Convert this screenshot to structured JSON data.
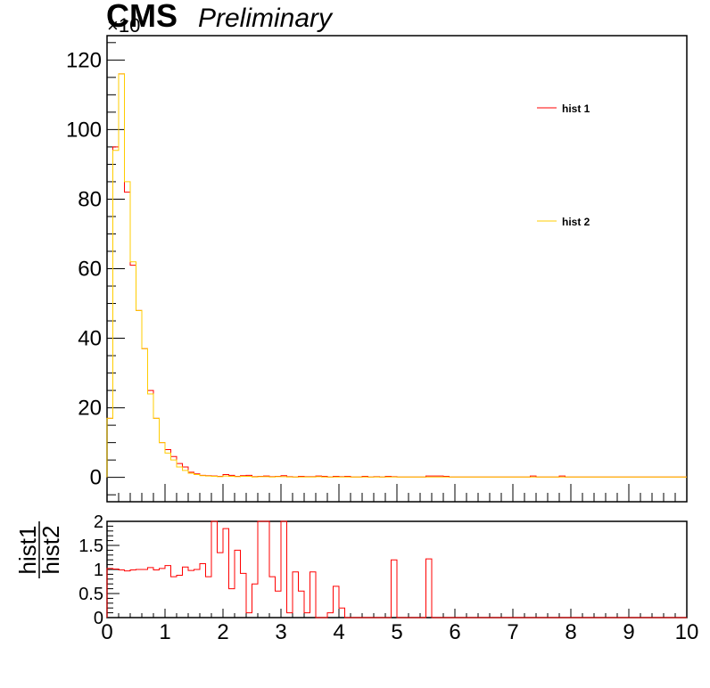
{
  "header": {
    "experiment": "CMS",
    "status": "Preliminary",
    "y_scale_label": "×10"
  },
  "legend": {
    "placement": "upper-right",
    "entries": [
      {
        "label": "hist 1",
        "color": "#ff0000"
      },
      {
        "label": "hist 2",
        "color": "#ffcc00"
      }
    ]
  },
  "chart_data": [
    {
      "type": "histogram",
      "xlim": [
        0,
        10
      ],
      "ylim": [
        -7,
        127
      ],
      "bin_width": 0.1,
      "y_tick_labels": [
        "0",
        "20",
        "40",
        "60",
        "80",
        "100",
        "120"
      ],
      "y_ticks": [
        0,
        20,
        40,
        60,
        80,
        100,
        120
      ],
      "series": [
        {
          "color": "#ff0000",
          "values": [
            17,
            95,
            116,
            82,
            61,
            48,
            37,
            25,
            17,
            10,
            8,
            6,
            4,
            3,
            1.5,
            1,
            0.6,
            0.5,
            0.4,
            0.3,
            0.8,
            0.6,
            0.3,
            0.5,
            0.6,
            0.2,
            0.3,
            0.4,
            0.2,
            0.3,
            0.5,
            0.2,
            0.1,
            0.3,
            0.2,
            0.2,
            0.4,
            0.3,
            0.1,
            0.3,
            0.2,
            0.3,
            0.1,
            0.1,
            0.3,
            0.1,
            0.2,
            0.1,
            0.3,
            0.2,
            0.1,
            0.1,
            0.1,
            0.1,
            0.1,
            0.4,
            0.4,
            0.4,
            0.3,
            0.1,
            0.1,
            0.1,
            0.1,
            0.1,
            0.1,
            0.1,
            0.1,
            0.1,
            0.1,
            0.1,
            0.1,
            0.1,
            0.1,
            0.4,
            0.1,
            0.1,
            0.1,
            0.1,
            0.4,
            0.1,
            0.1,
            0.1,
            0.1,
            0.1,
            0.1,
            0.1,
            0.1,
            0.1,
            0.1,
            0.1,
            0.1,
            0.1,
            0.1,
            0.1,
            0.1,
            0.1,
            0.1,
            0.1,
            0.1,
            0.1
          ]
        },
        {
          "color": "#ffcc00",
          "values": [
            17,
            94,
            116,
            85,
            62,
            48,
            37,
            24,
            17,
            10,
            7,
            5,
            3,
            2,
            1.2,
            0.8,
            0.5,
            0.4,
            0.3,
            0.2,
            0.4,
            0.3,
            0.2,
            0.3,
            0.3,
            0.1,
            0.2,
            0.2,
            0.1,
            0.2,
            0.2,
            0.1,
            0.1,
            0.1,
            0.1,
            0.1,
            0.2,
            0.1,
            0.1,
            0.1,
            0.1,
            0.1,
            0.1,
            0.1,
            0.1,
            0.1,
            0.1,
            0.1,
            0.1,
            0.1,
            0.1,
            0.1,
            0.1,
            0.1,
            0.1,
            0.1,
            0.1,
            0.1,
            0.1,
            0.1,
            0.1,
            0.1,
            0.1,
            0.1,
            0.1,
            0.1,
            0.1,
            0.1,
            0.1,
            0.1,
            0.1,
            0.1,
            0.1,
            0.1,
            0.1,
            0.1,
            0.1,
            0.1,
            0.1,
            0.1,
            0.1,
            0.1,
            0.1,
            0.1,
            0.1,
            0.1,
            0.1,
            0.1,
            0.1,
            0.1,
            0.1,
            0.1,
            0.1,
            0.1,
            0.1,
            0.1,
            0.1,
            0.1,
            0.1,
            0.1
          ]
        }
      ]
    },
    {
      "type": "histogram",
      "ylabel_numerator": "hist1",
      "ylabel_denominator": "hist2",
      "xlim": [
        0,
        10
      ],
      "ylim": [
        0,
        2
      ],
      "bin_width": 0.1,
      "x_tick_labels": [
        "0",
        "1",
        "2",
        "3",
        "4",
        "5",
        "6",
        "7",
        "8",
        "9",
        "10"
      ],
      "x_ticks": [
        0,
        1,
        2,
        3,
        4,
        5,
        6,
        7,
        8,
        9,
        10
      ],
      "y_tick_labels": [
        "0",
        "0.5",
        "1",
        "1.5",
        "2"
      ],
      "y_ticks": [
        0,
        0.5,
        1,
        1.5,
        2
      ],
      "series": [
        {
          "color": "#ff0000",
          "values": [
            1.02,
            1.01,
            0.99,
            0.97,
            0.99,
            1.0,
            1.0,
            1.04,
            0.99,
            1.02,
            1.08,
            0.85,
            0.88,
            1.05,
            0.98,
            1.0,
            1.12,
            0.85,
            2.0,
            1.35,
            1.85,
            0.6,
            1.4,
            0.92,
            0.1,
            0.7,
            2.0,
            2.0,
            0.85,
            0.55,
            2.0,
            0.1,
            0.95,
            0.55,
            0.1,
            0.95,
            0.0,
            0.0,
            0.1,
            0.65,
            0.2,
            0.0,
            0.0,
            0.0,
            0.0,
            0.0,
            0.0,
            0.0,
            0.0,
            1.2,
            0.0,
            0.0,
            0.0,
            0.0,
            0.0,
            1.22,
            0.0,
            0.0,
            0.0,
            0.0,
            0.0,
            0.0,
            0.0,
            0.0,
            0.0,
            0.0,
            0.0,
            0.0,
            0.0,
            0.0,
            0.0,
            0.0,
            0.0,
            0.0,
            0.0,
            0.0,
            0.0,
            0.0,
            0.0,
            0.0,
            0.0,
            0.0,
            0.0,
            0.0,
            0.0,
            0.0,
            0.0,
            0.0,
            0.0,
            0.0,
            0.0,
            0.0,
            0.0,
            0.0,
            0.0,
            0.0,
            0.0,
            0.0,
            0.0,
            0.0
          ]
        }
      ]
    }
  ]
}
